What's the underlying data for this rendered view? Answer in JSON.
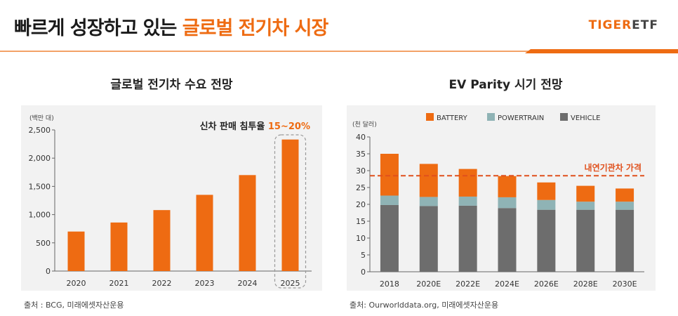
{
  "header": {
    "title_main": "빠르게 성장하고 있는 ",
    "title_highlight": "글로벌 전기차 시장",
    "logo_tiger": "TIGER",
    "logo_etf": "ETF",
    "accent_color": "#ee6b12"
  },
  "left": {
    "source": "출처 : BCG, 미래에셋자산운용"
  },
  "right": {
    "source": "출처: Ourworlddata.org, 미래에셋자산운용"
  },
  "chart_data": [
    {
      "type": "bar",
      "title": "글로벌 전기차 수요 전망",
      "unit_label": "(백만 대)",
      "categories": [
        "2020",
        "2021",
        "2022",
        "2023",
        "2024",
        "2025"
      ],
      "values": [
        700,
        860,
        1080,
        1350,
        1700,
        2330
      ],
      "ylim": [
        0,
        2500
      ],
      "yticks": [
        0,
        500,
        1000,
        1500,
        2000,
        2500
      ],
      "ytick_labels": [
        "0",
        "500",
        "1,000",
        "1,500",
        "2,000",
        "2,500"
      ],
      "color": "#ee6b12",
      "annotation_text": "신차 판매 침투율 ",
      "annotation_value": "15~20%",
      "highlight_category": "2025"
    },
    {
      "type": "bar",
      "stacked": true,
      "title": "EV Parity 시기 전망",
      "unit_label": "(천 달러)",
      "categories": [
        "2018",
        "2020E",
        "2022E",
        "2024E",
        "2026E",
        "2028E",
        "2030E"
      ],
      "series": [
        {
          "name": "VEHICLE",
          "color": "#6d6d6d",
          "values": [
            19.8,
            19.5,
            19.6,
            18.9,
            18.4,
            18.4,
            18.4
          ]
        },
        {
          "name": "POWERTRAIN",
          "color": "#8fb3b5",
          "values": [
            2.8,
            2.7,
            2.7,
            3.2,
            2.9,
            2.4,
            2.4
          ]
        },
        {
          "name": "BATTERY",
          "color": "#ee6b12",
          "values": [
            12.4,
            9.8,
            8.2,
            6.3,
            5.2,
            4.7,
            3.9
          ]
        }
      ],
      "legend_order": [
        "BATTERY",
        "POWERTRAIN",
        "VEHICLE"
      ],
      "ylim": [
        0,
        40
      ],
      "yticks": [
        0,
        5,
        10,
        15,
        20,
        25,
        30,
        35,
        40
      ],
      "reference_line": {
        "value": 28.5,
        "label": "내연기관차 가격",
        "color": "#e0501c"
      }
    }
  ]
}
